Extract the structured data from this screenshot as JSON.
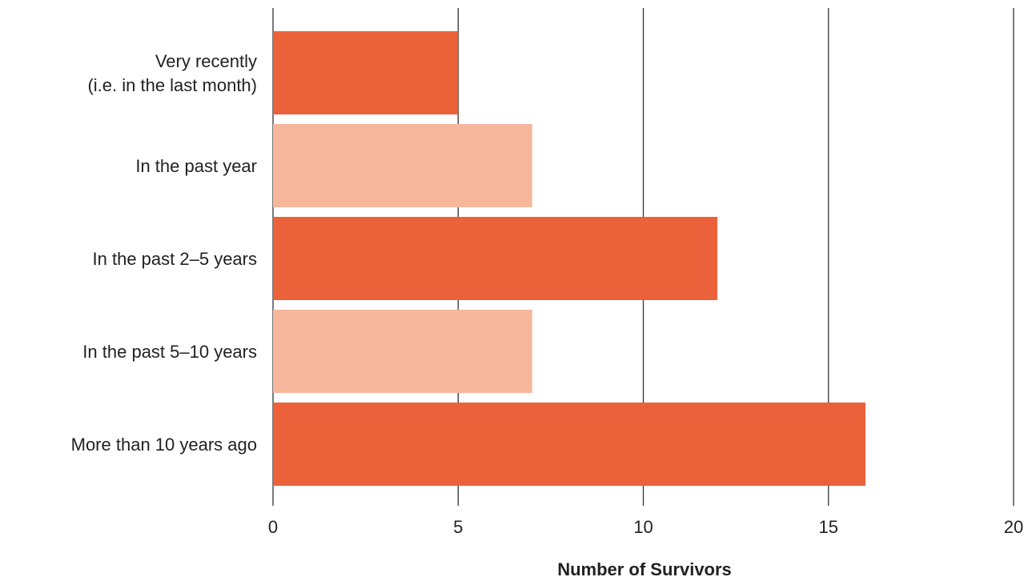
{
  "chart_data": {
    "type": "bar",
    "orientation": "horizontal",
    "categories": [
      [
        "Very recently",
        "(i.e. in the last month)"
      ],
      [
        "In the past year"
      ],
      [
        "In the past 2–5 years"
      ],
      [
        "In the past 5–10 years"
      ],
      [
        "More than 10 years ago"
      ]
    ],
    "values": [
      5,
      7,
      12,
      7,
      16
    ],
    "bar_colors": [
      "#EA613A",
      "#F6B79C",
      "#EA613A",
      "#F6B79C",
      "#EA613A"
    ],
    "xlabel": "Number of Survivors",
    "xlim": [
      0,
      20
    ],
    "x_ticks": [
      "0",
      "5",
      "10",
      "15",
      "20"
    ],
    "grid": "vertical",
    "gridline_color": "#333333"
  }
}
